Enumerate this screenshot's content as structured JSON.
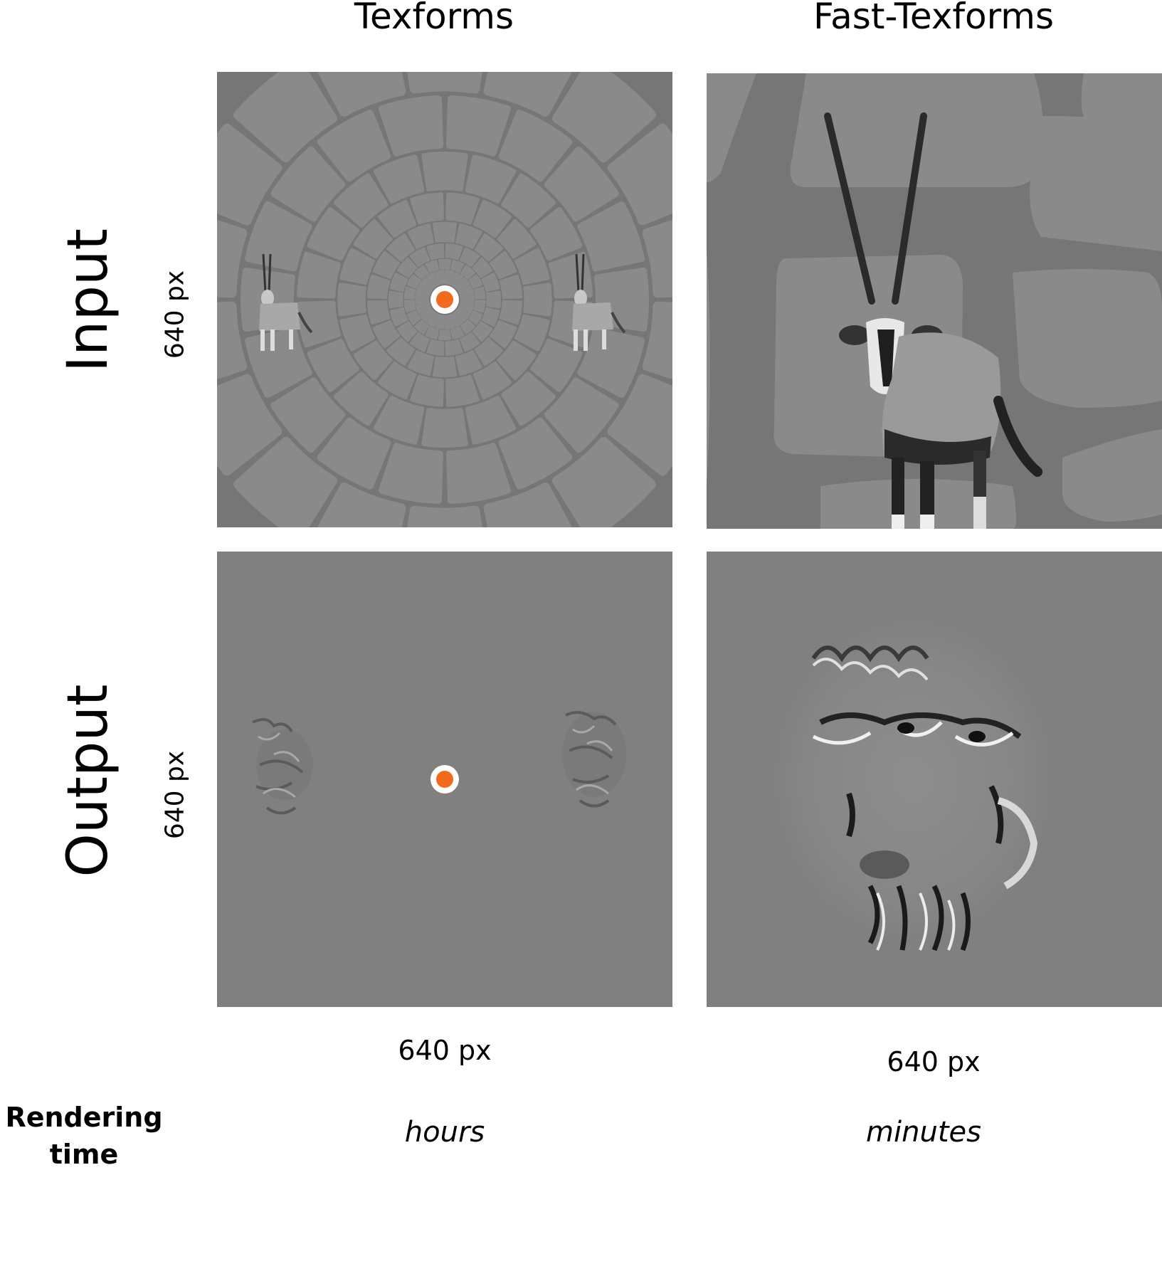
{
  "columns": [
    {
      "title": "Texforms",
      "size_label": "640 px",
      "rendering_time": "hours"
    },
    {
      "title": "Fast-Texforms",
      "size_label": "640 px",
      "rendering_time": "minutes"
    }
  ],
  "rows": [
    {
      "title": "Input",
      "size_label": "640 px"
    },
    {
      "title": "Output",
      "size_label": "640 px"
    }
  ],
  "rendering_time_label": {
    "line1": "Rendering",
    "line2": "time"
  },
  "colors": {
    "background_gray": "#8a8a8a",
    "dark_gray": "#767676",
    "output_gray": "#808080",
    "fixation_dot": "#f26b1d",
    "fixation_ring": "#ffffff"
  }
}
